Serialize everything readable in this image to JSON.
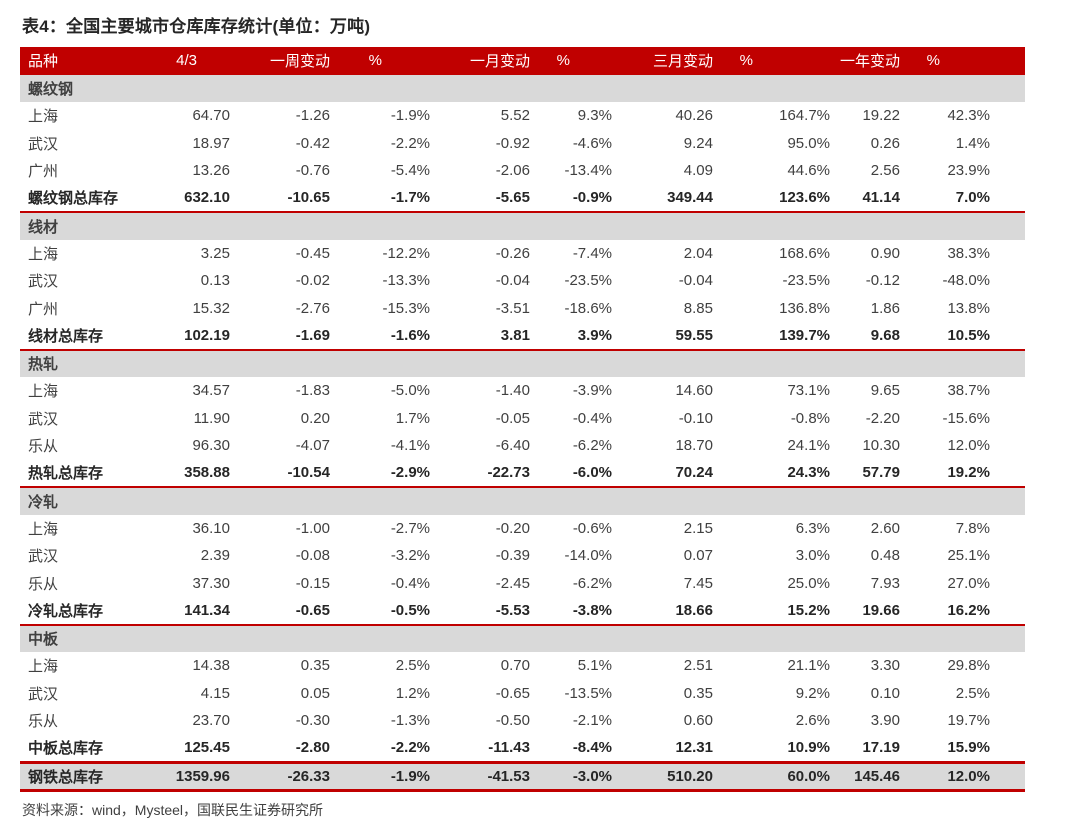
{
  "page": {
    "title": "表4：全国主要城市仓库库存统计(单位：万吨)",
    "source_note": "资料来源：wind，Mysteel，国联民生证券研究所"
  },
  "colors": {
    "header_bg": "#C00000",
    "separator_red": "#C00000",
    "section_band_bg": "#D9D9D9",
    "grand_total_bg": "#D9D9D9",
    "header_text": "#FFFFFF",
    "body_text": "#404040",
    "bold_text": "#262626"
  },
  "chart_data": {
    "type": "table",
    "title": "表4：全国主要城市仓库库存统计(单位：万吨)",
    "unit": "万吨",
    "columns": [
      "品种",
      "4/3",
      "一周变动",
      "%",
      "一月变动",
      "%",
      "三月变动",
      "%",
      "一年变动",
      "%"
    ],
    "sections": [
      {
        "name": "螺纹钢",
        "rows": [
          [
            "上海",
            "64.70",
            "-1.26",
            "-1.9%",
            "5.52",
            "9.3%",
            "40.26",
            "164.7%",
            "19.22",
            "42.3%"
          ],
          [
            "武汉",
            "18.97",
            "-0.42",
            "-2.2%",
            "-0.92",
            "-4.6%",
            "9.24",
            "95.0%",
            "0.26",
            "1.4%"
          ],
          [
            "广州",
            "13.26",
            "-0.76",
            "-5.4%",
            "-2.06",
            "-13.4%",
            "4.09",
            "44.6%",
            "2.56",
            "23.9%"
          ]
        ],
        "total": [
          "螺纹钢总库存",
          "632.10",
          "-10.65",
          "-1.7%",
          "-5.65",
          "-0.9%",
          "349.44",
          "123.6%",
          "41.14",
          "7.0%"
        ]
      },
      {
        "name": "线材",
        "rows": [
          [
            "上海",
            "3.25",
            "-0.45",
            "-12.2%",
            "-0.26",
            "-7.4%",
            "2.04",
            "168.6%",
            "0.90",
            "38.3%"
          ],
          [
            "武汉",
            "0.13",
            "-0.02",
            "-13.3%",
            "-0.04",
            "-23.5%",
            "-0.04",
            "-23.5%",
            "-0.12",
            "-48.0%"
          ],
          [
            "广州",
            "15.32",
            "-2.76",
            "-15.3%",
            "-3.51",
            "-18.6%",
            "8.85",
            "136.8%",
            "1.86",
            "13.8%"
          ]
        ],
        "total": [
          "线材总库存",
          "102.19",
          "-1.69",
          "-1.6%",
          "3.81",
          "3.9%",
          "59.55",
          "139.7%",
          "9.68",
          "10.5%"
        ]
      },
      {
        "name": "热轧",
        "rows": [
          [
            "上海",
            "34.57",
            "-1.83",
            "-5.0%",
            "-1.40",
            "-3.9%",
            "14.60",
            "73.1%",
            "9.65",
            "38.7%"
          ],
          [
            "武汉",
            "11.90",
            "0.20",
            "1.7%",
            "-0.05",
            "-0.4%",
            "-0.10",
            "-0.8%",
            "-2.20",
            "-15.6%"
          ],
          [
            "乐从",
            "96.30",
            "-4.07",
            "-4.1%",
            "-6.40",
            "-6.2%",
            "18.70",
            "24.1%",
            "10.30",
            "12.0%"
          ]
        ],
        "total": [
          "热轧总库存",
          "358.88",
          "-10.54",
          "-2.9%",
          "-22.73",
          "-6.0%",
          "70.24",
          "24.3%",
          "57.79",
          "19.2%"
        ]
      },
      {
        "name": "冷轧",
        "rows": [
          [
            "上海",
            "36.10",
            "-1.00",
            "-2.7%",
            "-0.20",
            "-0.6%",
            "2.15",
            "6.3%",
            "2.60",
            "7.8%"
          ],
          [
            "武汉",
            "2.39",
            "-0.08",
            "-3.2%",
            "-0.39",
            "-14.0%",
            "0.07",
            "3.0%",
            "0.48",
            "25.1%"
          ],
          [
            "乐从",
            "37.30",
            "-0.15",
            "-0.4%",
            "-2.45",
            "-6.2%",
            "7.45",
            "25.0%",
            "7.93",
            "27.0%"
          ]
        ],
        "total": [
          "冷轧总库存",
          "141.34",
          "-0.65",
          "-0.5%",
          "-5.53",
          "-3.8%",
          "18.66",
          "15.2%",
          "19.66",
          "16.2%"
        ]
      },
      {
        "name": "中板",
        "rows": [
          [
            "上海",
            "14.38",
            "0.35",
            "2.5%",
            "0.70",
            "5.1%",
            "2.51",
            "21.1%",
            "3.30",
            "29.8%"
          ],
          [
            "武汉",
            "4.15",
            "0.05",
            "1.2%",
            "-0.65",
            "-13.5%",
            "0.35",
            "9.2%",
            "0.10",
            "2.5%"
          ],
          [
            "乐从",
            "23.70",
            "-0.30",
            "-1.3%",
            "-0.50",
            "-2.1%",
            "0.60",
            "2.6%",
            "3.90",
            "19.7%"
          ]
        ],
        "total": [
          "中板总库存",
          "125.45",
          "-2.80",
          "-2.2%",
          "-11.43",
          "-8.4%",
          "12.31",
          "10.9%",
          "17.19",
          "15.9%"
        ]
      }
    ],
    "grand_total": [
      "钢铁总库存",
      "1359.96",
      "-26.33",
      "-1.9%",
      "-41.53",
      "-3.0%",
      "510.20",
      "60.0%",
      "145.46",
      "12.0%"
    ],
    "source": "资料来源：wind，Mysteel，国联民生证券研究所"
  }
}
